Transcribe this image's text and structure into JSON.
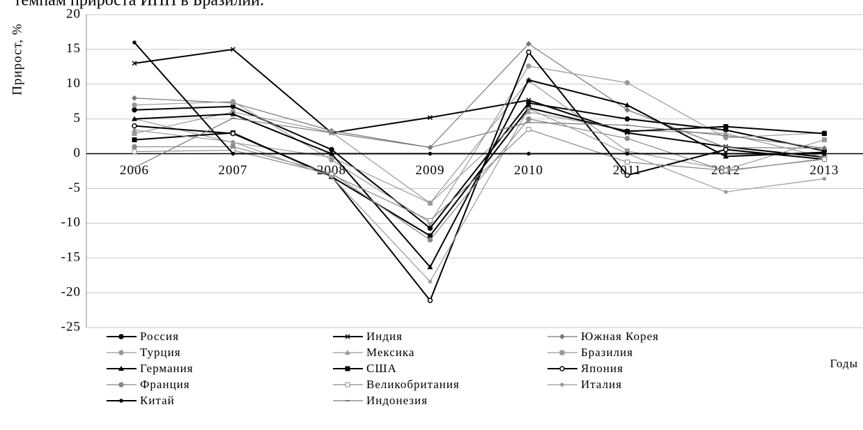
{
  "caption": "темпам прироста ИПП в Бразилии.",
  "chart_data": {
    "type": "line",
    "y_label": "Прирост, %",
    "x_label": "Годы",
    "categories": [
      "2006",
      "2007",
      "2008",
      "2009",
      "2010",
      "2011",
      "2012",
      "2013"
    ],
    "ylim": [
      -25,
      20
    ],
    "yticks": [
      -25,
      -20,
      -15,
      -10,
      -5,
      0,
      5,
      10,
      15,
      20
    ],
    "grid": true,
    "series": [
      {
        "name": "Россия",
        "color": "#000000",
        "marker": "circle",
        "values": [
          6.3,
          6.8,
          0.6,
          -10.7,
          7.3,
          5.0,
          3.4,
          0.4
        ]
      },
      {
        "name": "Индия",
        "color": "#000000",
        "marker": "x",
        "values": [
          13,
          15,
          3,
          5.2,
          7.7,
          3.0,
          1.0,
          -0.5
        ]
      },
      {
        "name": "Южная Корея",
        "color": "#777777",
        "marker": "diamond",
        "values": [
          8.0,
          7.3,
          3.3,
          0.9,
          15.8,
          6.3,
          0.9,
          0.8
        ]
      },
      {
        "name": "Турция",
        "color": "#999999",
        "marker": "circle",
        "values": [
          7.0,
          7.5,
          -0.9,
          -9.9,
          12.6,
          10.2,
          2.3,
          3.0
        ]
      },
      {
        "name": "Мексика",
        "color": "#999999",
        "marker": "triangle",
        "values": [
          5.0,
          1.6,
          -0.5,
          -7.1,
          6.0,
          3.4,
          2.9,
          -0.5
        ]
      },
      {
        "name": "Бразилия",
        "color": "#999999",
        "marker": "square",
        "values": [
          2.9,
          6.0,
          3.1,
          -7.1,
          10.5,
          0.4,
          -2.3,
          2.0
        ]
      },
      {
        "name": "Германия",
        "color": "#000000",
        "marker": "triangle",
        "values": [
          5.0,
          5.7,
          0.0,
          -16.3,
          10.6,
          7.0,
          -0.4,
          0.2
        ]
      },
      {
        "name": "США",
        "color": "#000000",
        "marker": "square",
        "values": [
          2.0,
          3.0,
          -3.3,
          -11.8,
          6.6,
          3.2,
          3.9,
          2.9
        ]
      },
      {
        "name": "Япония",
        "color": "#000000",
        "marker": "open-circle",
        "values": [
          4.0,
          2.9,
          -3.2,
          -21.1,
          14.6,
          -3.1,
          0.6,
          -0.8
        ]
      },
      {
        "name": "Франция",
        "color": "#888888",
        "marker": "circle",
        "values": [
          1.0,
          1.0,
          -2.8,
          -12.4,
          5.0,
          2.2,
          -2.5,
          -0.7
        ]
      },
      {
        "name": "Великобритания",
        "color": "#888888",
        "marker": "open-square",
        "values": [
          0.3,
          0.5,
          -3.0,
          -9.6,
          3.5,
          -1.2,
          -2.4,
          -0.8
        ]
      },
      {
        "name": "Италия",
        "color": "#999999",
        "marker": "dot",
        "values": [
          3.4,
          1.7,
          -3.3,
          -18.4,
          6.5,
          0.0,
          -5.5,
          -3.6
        ]
      },
      {
        "name": "Китай",
        "color": "#000000",
        "marker": "dot",
        "values": [
          16,
          0,
          0,
          0,
          0,
          0,
          0,
          0
        ]
      },
      {
        "name": "Индонезия",
        "color": "#777777",
        "marker": "dash",
        "values": [
          -2.0,
          5.1,
          3.0,
          0.9,
          4.5,
          4.1,
          2.6,
          0.8
        ]
      }
    ]
  }
}
